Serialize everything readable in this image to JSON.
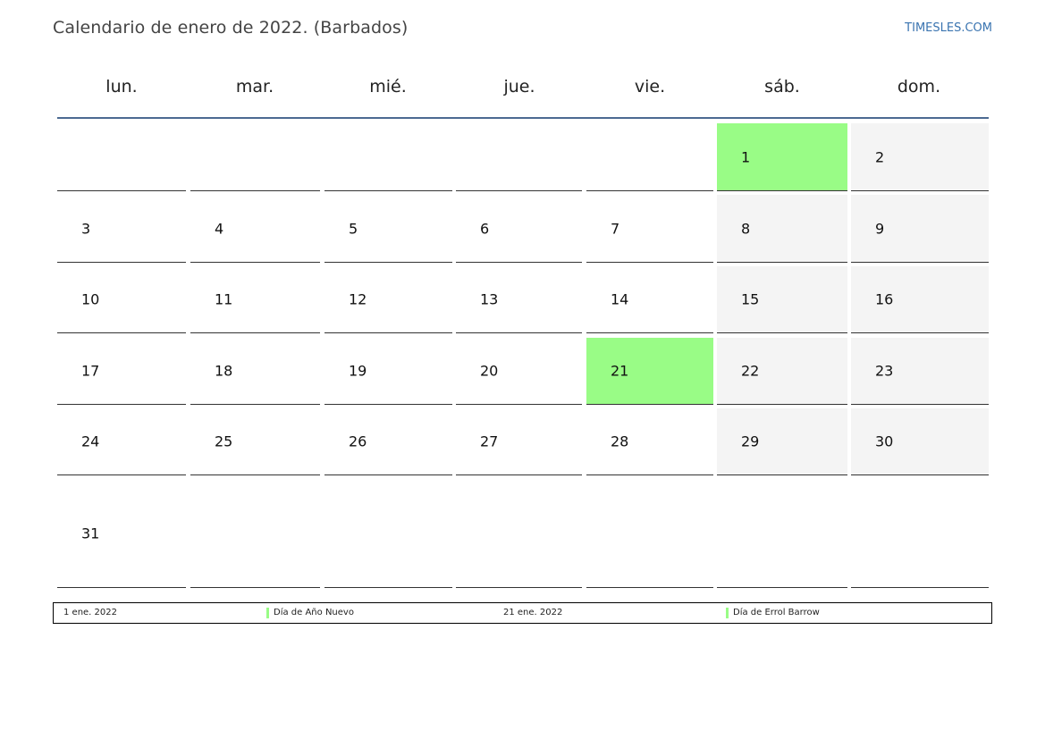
{
  "header": {
    "title": "Calendario de enero de 2022. (Barbados)",
    "brand": "TIMESLES.COM"
  },
  "calendar": {
    "weekdays": [
      "lun.",
      "mar.",
      "mié.",
      "jue.",
      "vie.",
      "sáb.",
      "dom."
    ],
    "weeks": [
      [
        "",
        "",
        "",
        "",
        "",
        "1",
        "2"
      ],
      [
        "3",
        "4",
        "5",
        "6",
        "7",
        "8",
        "9"
      ],
      [
        "10",
        "11",
        "12",
        "13",
        "14",
        "15",
        "16"
      ],
      [
        "17",
        "18",
        "19",
        "20",
        "21",
        "22",
        "23"
      ],
      [
        "24",
        "25",
        "26",
        "27",
        "28",
        "29",
        "30"
      ],
      [
        "31",
        "",
        "",
        "",
        "",
        "",
        ""
      ]
    ],
    "holiday_days": [
      "1",
      "21"
    ],
    "colors": {
      "holiday": "#99fc86",
      "weekend": "#f4f4f4",
      "header_rule": "#4c6a92"
    }
  },
  "legend": {
    "holidays": [
      {
        "date": "1 ene. 2022",
        "name": "Día de Año Nuevo"
      },
      {
        "date": "21 ene. 2022",
        "name": "Día de Errol Barrow"
      }
    ]
  }
}
